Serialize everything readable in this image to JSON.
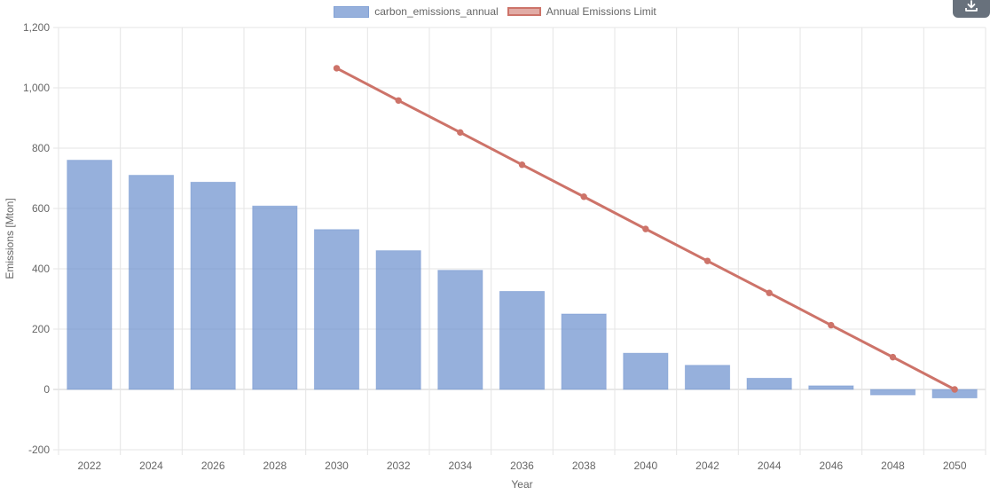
{
  "legend": {
    "bar_label": "carbon_emissions_annual",
    "line_label": "Annual Emissions Limit"
  },
  "download_icon": "download-icon",
  "chart_data": {
    "type": "bar",
    "xlabel": "Year",
    "ylabel": "Emissions [Mton]",
    "ylim": [
      -200,
      1200
    ],
    "yticks": [
      -200,
      0,
      200,
      400,
      600,
      800,
      1000,
      1200
    ],
    "ytick_labels": [
      "-200",
      "0",
      "200",
      "400",
      "600",
      "800",
      "1,000",
      "1,200"
    ],
    "grid": true,
    "legend_position": "top-center",
    "categories": [
      "2022",
      "2024",
      "2026",
      "2028",
      "2030",
      "2032",
      "2034",
      "2036",
      "2038",
      "2040",
      "2042",
      "2044",
      "2046",
      "2048",
      "2050"
    ],
    "series": [
      {
        "name": "carbon_emissions_annual",
        "type": "bar",
        "color": "#7d9fd3",
        "values": [
          760,
          710,
          687,
          608,
          530,
          460,
          395,
          325,
          250,
          120,
          80,
          37,
          12,
          -18,
          -28
        ]
      },
      {
        "name": "Annual Emissions Limit",
        "type": "line",
        "color": "#cd7369",
        "values": [
          null,
          null,
          null,
          null,
          1065,
          958,
          852,
          745,
          639,
          532,
          426,
          320,
          213,
          107,
          0
        ]
      }
    ]
  }
}
